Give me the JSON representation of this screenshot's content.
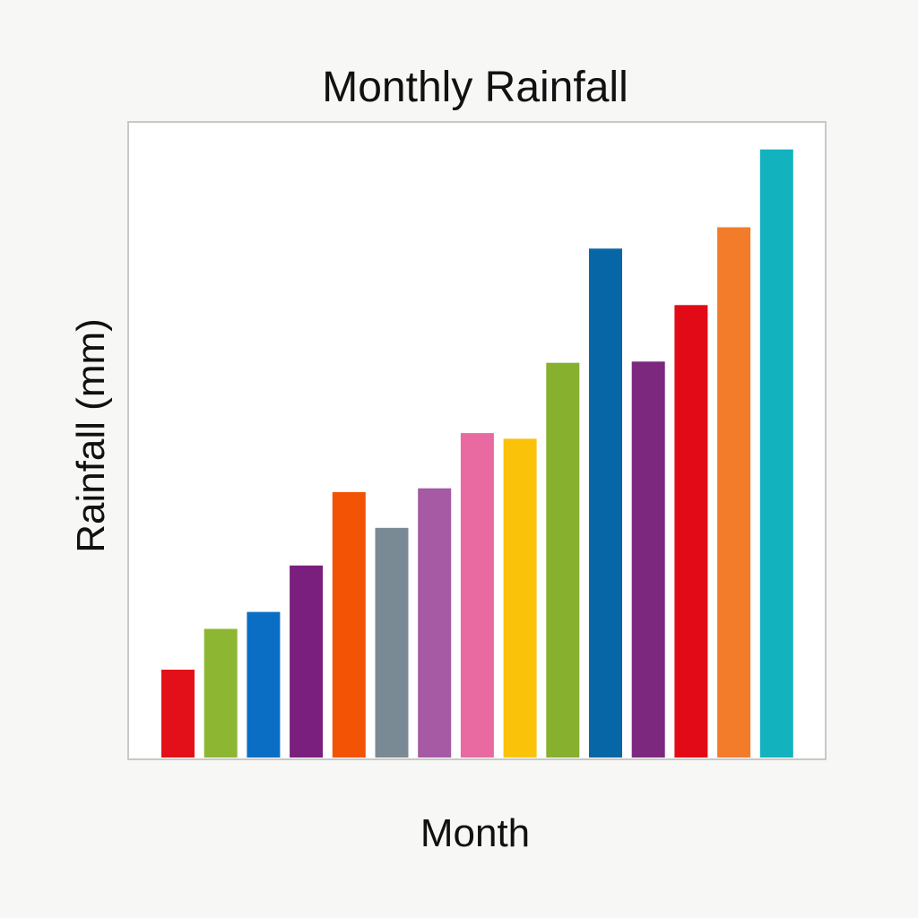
{
  "chart_data": {
    "type": "bar",
    "title": "Monthly Rainfall",
    "xlabel": "Month",
    "ylabel": "Rainfall (mm)",
    "categories": [
      "",
      "",
      "",
      "",
      "",
      "",
      "",
      "",
      "",
      "",
      "",
      "",
      "",
      "",
      ""
    ],
    "values": [
      14,
      20.5,
      23.2,
      30.6,
      42.3,
      36.6,
      42.9,
      51.7,
      50.8,
      62.9,
      81.1,
      63.1,
      72.1,
      84.5,
      96.9
    ],
    "ylim": [
      0,
      100
    ],
    "grid": false,
    "legend": "none",
    "colors": [
      "#e3101a",
      "#8db733",
      "#0a6ec4",
      "#7a1f7e",
      "#f25305",
      "#7a8a94",
      "#a65aa3",
      "#e86aa0",
      "#fbc20a",
      "#86b02e",
      "#0766a6",
      "#7c287f",
      "#e30a17",
      "#f27c2a",
      "#12b3be"
    ]
  }
}
